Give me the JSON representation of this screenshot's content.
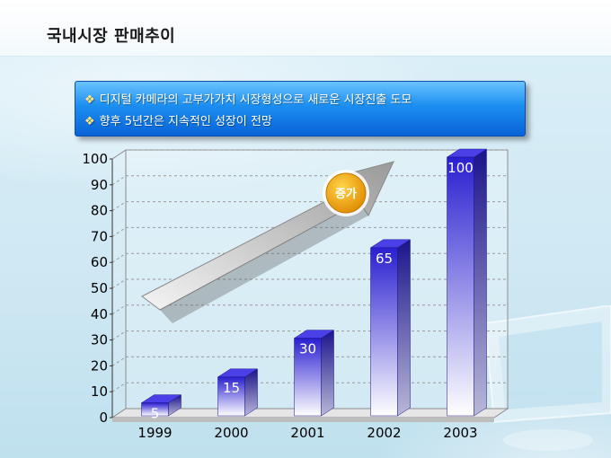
{
  "page": {
    "title": "국내시장 판매추이"
  },
  "info_box": {
    "bullet_icon": "diamond-bullet-icon",
    "lines": [
      "디지털 카메라의 고부가가치 시장형성으로 새로운 시장진출 도모",
      "향후 5년간은 지속적인 성장이 전망"
    ]
  },
  "annotation": {
    "arrow_icon": "growth-arrow-icon",
    "badge_label": "증가"
  },
  "colors": {
    "bar_top": "#2a1fd0",
    "bar_bottom": "#ffffff",
    "badge": "#f5a400",
    "info_box": "#1b8ef0"
  },
  "chart_data": {
    "type": "bar",
    "categories": [
      "1999",
      "2000",
      "2001",
      "2002",
      "2003"
    ],
    "values": [
      5,
      15,
      30,
      65,
      100
    ],
    "ylim": [
      0,
      100
    ],
    "yticks": [
      0,
      10,
      20,
      30,
      40,
      50,
      60,
      70,
      80,
      90,
      100
    ],
    "grid": true,
    "data_labels": true,
    "style": "3d-column"
  }
}
